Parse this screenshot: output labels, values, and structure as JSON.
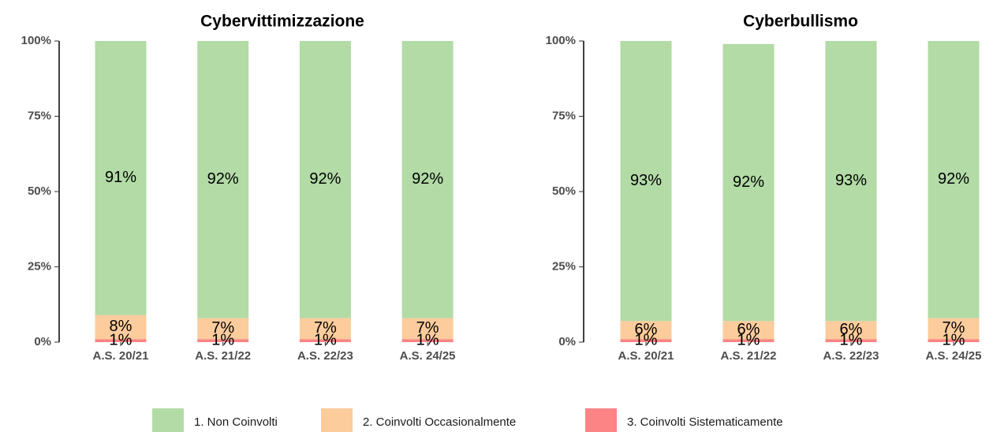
{
  "chart_data": [
    {
      "type": "bar",
      "stacked": true,
      "title": "Cybervittimizzazione",
      "categories": [
        "A.S. 20/21",
        "A.S. 21/22",
        "A.S. 22/23",
        "A.S. 24/25"
      ],
      "series": [
        {
          "name": "1. Non Coinvolti",
          "color": "#b2dba6",
          "values": [
            91,
            92,
            92,
            92
          ],
          "value_labels": [
            "91%",
            "92%",
            "92%",
            "92%"
          ]
        },
        {
          "name": "2. Coinvolti Occasionalmente",
          "color": "#fccc9c",
          "values": [
            8,
            7,
            7,
            7
          ],
          "value_labels": [
            "8%",
            "7%",
            "7%",
            "7%"
          ]
        },
        {
          "name": "3. Coinvolti Sistematicamente",
          "color": "#fc8484",
          "values": [
            1,
            1,
            1,
            1
          ],
          "value_labels": [
            "1%",
            "1%",
            "1%",
            "1%"
          ]
        }
      ],
      "ylim": [
        0,
        100
      ],
      "yticks": [
        {
          "value": 0,
          "label": "0%"
        },
        {
          "value": 25,
          "label": "25%"
        },
        {
          "value": 50,
          "label": "50%"
        },
        {
          "value": 75,
          "label": "75%"
        },
        {
          "value": 100,
          "label": "100%"
        }
      ]
    },
    {
      "type": "bar",
      "stacked": true,
      "title": "Cyberbullismo",
      "categories": [
        "A.S. 20/21",
        "A.S. 21/22",
        "A.S. 22/23",
        "A.S. 24/25"
      ],
      "series": [
        {
          "name": "1. Non Coinvolti",
          "color": "#b2dba6",
          "values": [
            93,
            92,
            93,
            92
          ],
          "value_labels": [
            "93%",
            "92%",
            "93%",
            "92%"
          ]
        },
        {
          "name": "2. Coinvolti Occasionalmente",
          "color": "#fccc9c",
          "values": [
            6,
            6,
            6,
            7
          ],
          "value_labels": [
            "6%",
            "6%",
            "6%",
            "7%"
          ]
        },
        {
          "name": "3. Coinvolti Sistematicamente",
          "color": "#fc8484",
          "values": [
            1,
            1,
            1,
            1
          ],
          "value_labels": [
            "1%",
            "1%",
            "1%",
            "1%"
          ]
        }
      ],
      "ylim": [
        0,
        100
      ],
      "yticks": [
        {
          "value": 0,
          "label": "0%"
        },
        {
          "value": 25,
          "label": "25%"
        },
        {
          "value": 50,
          "label": "50%"
        },
        {
          "value": 75,
          "label": "75%"
        },
        {
          "value": 100,
          "label": "100%"
        }
      ]
    }
  ]
}
